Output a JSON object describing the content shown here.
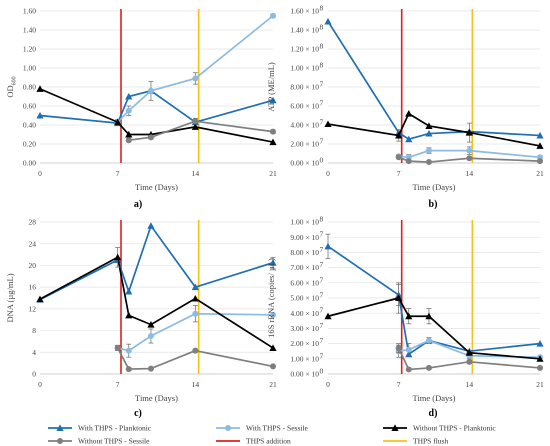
{
  "chart_data": [
    {
      "type": "line",
      "panel_label": "a)",
      "ylabel": "OD",
      "ylabel_sub": "600",
      "xlabel": "Time (Days)",
      "xlim": [
        0,
        21
      ],
      "ylim": [
        0,
        1.6
      ],
      "x_ticks": [
        0,
        7,
        14,
        21
      ],
      "x_tick_labels": [
        "0",
        "7",
        "14",
        "21"
      ],
      "y_ticks": [
        0,
        0.2,
        0.4,
        0.6,
        0.8,
        1.0,
        1.2,
        1.4,
        1.6
      ],
      "y_tick_labels": [
        "0.00",
        "0.20",
        "0.40",
        "0.60",
        "0.80",
        "1.00",
        "1.20",
        "1.40",
        "1.60"
      ],
      "grid": true,
      "series": [
        {
          "name": "With THPS - Planktonic",
          "x": [
            0,
            7,
            8,
            10,
            14,
            21
          ],
          "y": [
            0.5,
            0.42,
            0.7,
            0.76,
            0.43,
            0.66
          ],
          "err": [
            0,
            0,
            0,
            0,
            0,
            0
          ]
        },
        {
          "name": "With THPS - Sessile",
          "x": [
            7,
            8,
            10,
            14,
            21
          ],
          "y": [
            0.43,
            0.55,
            0.76,
            0.89,
            1.55
          ],
          "err": [
            0.03,
            0.05,
            0.1,
            0.06,
            0.02
          ]
        },
        {
          "name": "Without THPS - Planktonic",
          "x": [
            0,
            7,
            8,
            10,
            14,
            21
          ],
          "y": [
            0.78,
            0.43,
            0.3,
            0.3,
            0.38,
            0.22
          ],
          "err": [
            0,
            0,
            0,
            0,
            0,
            0
          ]
        },
        {
          "name": "Without THPS - Sessile",
          "x": [
            8,
            10,
            14,
            21
          ],
          "y": [
            0.24,
            0.27,
            0.44,
            0.33
          ],
          "err": [
            0.02,
            0.02,
            0.03,
            0.02
          ]
        }
      ]
    },
    {
      "type": "line",
      "panel_label": "b)",
      "ylabel": "ATP (ME/mL)",
      "ylabel_sub": "",
      "xlabel": "Time (Days)",
      "xlim": [
        0,
        21
      ],
      "ylim": [
        0,
        16
      ],
      "x_ticks": [
        0,
        7,
        14,
        21
      ],
      "x_tick_labels": [
        "0",
        "7",
        "14",
        "21"
      ],
      "y_ticks": [
        0,
        2,
        4,
        6,
        8,
        10,
        12,
        14,
        16
      ],
      "y_tick_labels": [
        "0.00 × 10",
        "2.00 × 10",
        "4.00 × 10",
        "6.00 × 10",
        "8.00 × 10",
        "1.00 × 10",
        "1.20 × 10",
        "1.40 × 10",
        "1.60 × 10"
      ],
      "y_tick_exponents": [
        "0",
        "7",
        "7",
        "7",
        "7",
        "8",
        "8",
        "8",
        "8"
      ],
      "grid": true,
      "series": [
        {
          "name": "With THPS - Planktonic",
          "x": [
            0,
            7,
            8,
            10,
            14,
            21
          ],
          "y": [
            14.9,
            3.2,
            2.5,
            3.1,
            3.3,
            2.9
          ],
          "err": [
            0,
            0,
            0,
            0,
            0,
            0
          ]
        },
        {
          "name": "With THPS - Sessile",
          "x": [
            7,
            8,
            10,
            14,
            21
          ],
          "y": [
            0.7,
            0.6,
            1.3,
            1.3,
            0.6
          ],
          "err": [
            0.2,
            0.3,
            0.3,
            0.4,
            0.2
          ]
        },
        {
          "name": "Without THPS - Planktonic",
          "x": [
            0,
            7,
            8,
            10,
            14,
            21
          ],
          "y": [
            4.1,
            2.9,
            5.2,
            3.9,
            3.2,
            1.8
          ],
          "err": [
            0,
            0.6,
            0,
            0,
            1.0,
            0
          ]
        },
        {
          "name": "Without THPS - Sessile",
          "x": [
            7,
            8,
            10,
            14,
            21
          ],
          "y": [
            0.6,
            0.2,
            0.1,
            0.5,
            0.2
          ],
          "err": [
            0.1,
            0.1,
            0.05,
            0.1,
            0.05
          ]
        }
      ]
    },
    {
      "type": "line",
      "panel_label": "c)",
      "ylabel": "DNA (µg/mL)",
      "ylabel_sub": "",
      "xlabel": "Time (Days)",
      "xlim": [
        0,
        21
      ],
      "ylim": [
        0,
        28
      ],
      "x_ticks": [
        0,
        7,
        14,
        21
      ],
      "x_tick_labels": [
        "0",
        "7",
        "14",
        "21"
      ],
      "y_ticks": [
        0,
        4,
        8,
        12,
        16,
        20,
        24,
        28
      ],
      "y_tick_labels": [
        "0",
        "4",
        "8",
        "12",
        "16",
        "20",
        "24",
        "28"
      ],
      "grid": true,
      "series": [
        {
          "name": "With THPS - Planktonic",
          "x": [
            0,
            7,
            8,
            10,
            14,
            21
          ],
          "y": [
            13.7,
            21.0,
            15.2,
            27.3,
            16.0,
            20.5
          ],
          "err": [
            0,
            0,
            0,
            0,
            0,
            1.0
          ]
        },
        {
          "name": "With THPS - Sessile",
          "x": [
            7,
            8,
            10,
            14,
            21
          ],
          "y": [
            4.8,
            4.3,
            7.0,
            11.1,
            10.9
          ],
          "err": [
            0.5,
            1.2,
            1.3,
            1.5,
            0.3
          ]
        },
        {
          "name": "Without THPS - Planktonic",
          "x": [
            0,
            7,
            8,
            10,
            14,
            21
          ],
          "y": [
            13.8,
            21.5,
            10.8,
            9.1,
            13.9,
            4.8
          ],
          "err": [
            0,
            1.8,
            0,
            0,
            0,
            0
          ]
        },
        {
          "name": "Without THPS - Sessile",
          "x": [
            7,
            8,
            10,
            14,
            21
          ],
          "y": [
            4.8,
            0.9,
            1.0,
            4.3,
            1.4
          ],
          "err": [
            0.4,
            0.2,
            0.2,
            0.3,
            0.2
          ]
        }
      ]
    },
    {
      "type": "line",
      "panel_label": "d)",
      "ylabel": "16S rRNA (copies/ µL)",
      "ylabel_sub": "",
      "xlabel": "Time (Days)",
      "xlim": [
        0,
        21
      ],
      "ylim": [
        0,
        10
      ],
      "x_ticks": [
        0,
        7,
        14,
        21
      ],
      "x_tick_labels": [
        "0",
        "7",
        "14",
        "21"
      ],
      "y_ticks": [
        0,
        1,
        2,
        3,
        4,
        5,
        6,
        7,
        8,
        9,
        10
      ],
      "y_tick_labels": [
        "0.00 × 10",
        "1.00 × 10",
        "2.00 × 10",
        "3.00 × 10",
        "4.00 × 10",
        "5.00 × 10",
        "6.00 × 10",
        "7.00 × 10",
        "8.00 × 10",
        "9.00 × 10",
        "1.00 × 10"
      ],
      "y_tick_exponents": [
        "0",
        "7",
        "7",
        "7",
        "7",
        "7",
        "7",
        "7",
        "7",
        "7",
        "8"
      ],
      "grid": true,
      "series": [
        {
          "name": "With THPS - Planktonic",
          "x": [
            0,
            7,
            8,
            10,
            14,
            21
          ],
          "y": [
            8.4,
            5.2,
            1.3,
            2.2,
            1.5,
            2.0
          ],
          "err": [
            0.8,
            0.7,
            0,
            0,
            0,
            0
          ]
        },
        {
          "name": "With THPS - Sessile",
          "x": [
            7,
            8,
            10,
            14,
            21
          ],
          "y": [
            1.5,
            1.6,
            2.2,
            1.2,
            1.1
          ],
          "err": [
            0.4,
            0.4,
            0.2,
            0.2,
            0.1
          ]
        },
        {
          "name": "Without THPS - Planktonic",
          "x": [
            0,
            7,
            8,
            10,
            14,
            21
          ],
          "y": [
            3.8,
            5.0,
            3.8,
            3.8,
            1.4,
            1.0
          ],
          "err": [
            0,
            1.0,
            0.5,
            0.5,
            0,
            0
          ]
        },
        {
          "name": "Without THPS - Sessile",
          "x": [
            7,
            8,
            10,
            14,
            21
          ],
          "y": [
            1.7,
            0.3,
            0.4,
            0.8,
            0.4
          ],
          "err": [
            0.3,
            0.1,
            0.1,
            0.1,
            0.1
          ]
        }
      ]
    }
  ],
  "event_lines": [
    {
      "name": "THPS addition",
      "x": 7.3,
      "color": "#e02020"
    },
    {
      "name": "THPS flush",
      "x": 14.3,
      "color": "#f2c21b"
    }
  ],
  "series_styles": [
    {
      "color": "#1f6fb4",
      "marker": "triangle"
    },
    {
      "color": "#8bbbe3",
      "marker": "circle"
    },
    {
      "color": "#000000",
      "marker": "triangle"
    },
    {
      "color": "#7f7f7f",
      "marker": "circle"
    }
  ],
  "legend": {
    "placement": "bottom",
    "items": [
      {
        "label": "With THPS - Planktonic",
        "color": "#1f6fb4",
        "marker": "triangle"
      },
      {
        "label": "With THPS - Sessile",
        "color": "#8bbbe3",
        "marker": "circle"
      },
      {
        "label": "Without THPS - Planktonic",
        "color": "#000000",
        "marker": "triangle"
      },
      {
        "label": "Without THPS - Sessile",
        "color": "#7f7f7f",
        "marker": "circle"
      },
      {
        "label": "THPS addition",
        "color": "#e02020",
        "marker": "none"
      },
      {
        "label": "THPS flush",
        "color": "#f2c21b",
        "marker": "none"
      }
    ]
  }
}
